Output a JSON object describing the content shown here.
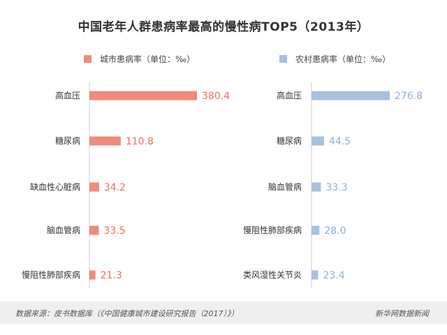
{
  "title": "中国老年人群患病率最高的慢性病TOP5（2013年）",
  "colors": {
    "urban": "#ef8a7d",
    "rural": "#a7c1df",
    "urban_text": "#ee6f61",
    "rural_text": "#8fb0d6"
  },
  "chart_data": [
    {
      "type": "bar",
      "orientation": "horizontal",
      "legend": "城市患病率（单位：‰）",
      "categories": [
        "高血压",
        "糖尿病",
        "缺血性心脏病",
        "脑血管病",
        "慢阻性肺部疾病"
      ],
      "values": [
        380.4,
        110.8,
        34.2,
        33.5,
        21.3
      ],
      "value_labels": [
        "380.4",
        "110.8",
        "34.2",
        "33.5",
        "21.3"
      ]
    },
    {
      "type": "bar",
      "orientation": "horizontal",
      "legend": "农村患病率（单位：‰）",
      "categories": [
        "高血压",
        "糖尿病",
        "脑血管病",
        "慢阻性肺部疾病",
        "类风湿性关节炎"
      ],
      "values": [
        276.8,
        44.5,
        33.3,
        28.0,
        23.4
      ],
      "value_labels": [
        "276.8",
        "44.5",
        "33.3",
        "28.0",
        "23.4"
      ]
    }
  ],
  "footer": {
    "source": "数据来源：皮书数据库（《中国健康城市建设研究报告（2017）》）",
    "brand": "新华网数据新闻"
  }
}
